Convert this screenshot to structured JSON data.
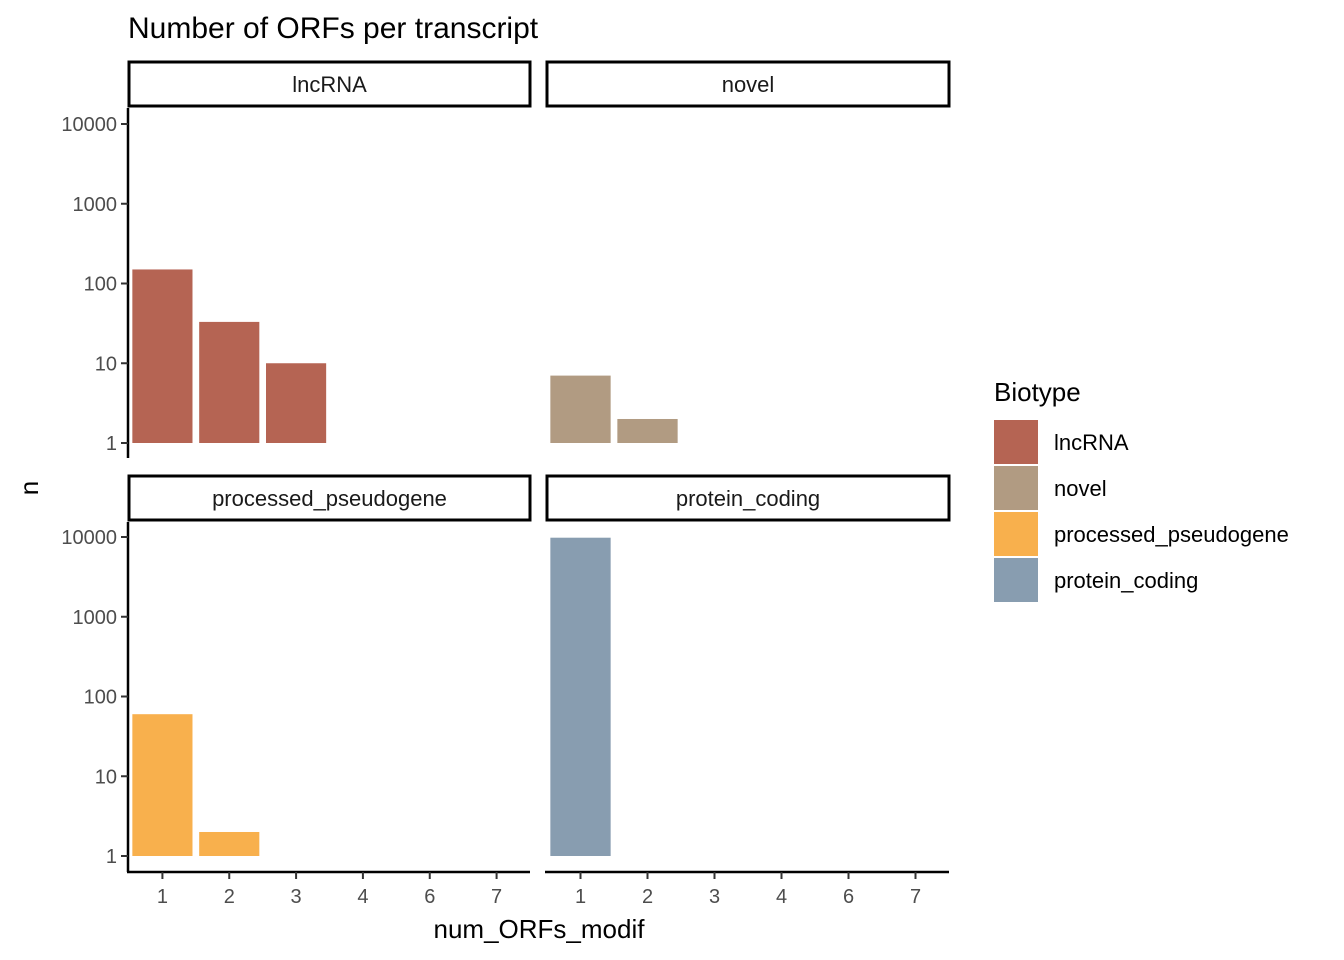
{
  "chart_data": {
    "type": "bar",
    "title": "Number of ORFs per transcript",
    "xlabel": "num_ORFs_modif",
    "ylabel": "n",
    "y_scale": "log10",
    "ylim": [
      1,
      10000
    ],
    "y_ticks": [
      "1",
      "10",
      "100",
      "1000",
      "10000"
    ],
    "x_ticks": [
      "1",
      "2",
      "3",
      "4",
      "6",
      "7"
    ],
    "legend_title": "Biotype",
    "legend_position": "right",
    "grid": false,
    "facets": [
      {
        "name": "lncRNA",
        "color": "#b56453",
        "values": [
          {
            "x": "1",
            "n": 150
          },
          {
            "x": "2",
            "n": 33
          },
          {
            "x": "3",
            "n": 10
          }
        ]
      },
      {
        "name": "novel",
        "color": "#b19b82",
        "values": [
          {
            "x": "1",
            "n": 7
          },
          {
            "x": "2",
            "n": 2
          }
        ]
      },
      {
        "name": "processed_pseudogene",
        "color": "#f8b04d",
        "values": [
          {
            "x": "1",
            "n": 60
          },
          {
            "x": "2",
            "n": 2
          }
        ]
      },
      {
        "name": "protein_coding",
        "color": "#889db0",
        "values": [
          {
            "x": "1",
            "n": 9800
          }
        ]
      }
    ]
  }
}
